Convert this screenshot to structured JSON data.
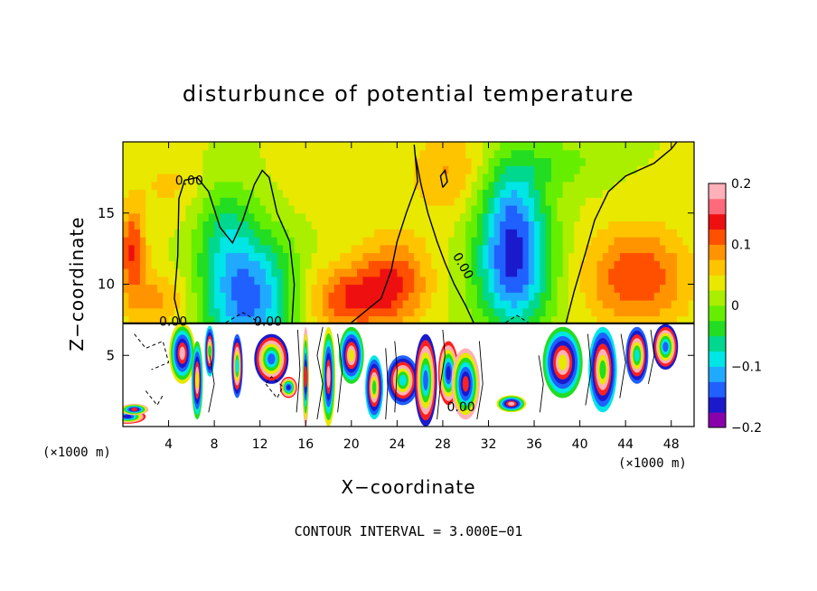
{
  "chart_data": {
    "type": "heatmap",
    "title": "disturbunce of potential temperature",
    "xlabel": "X−coordinate",
    "ylabel": "Z−coordinate",
    "x_unit": "(×1000 m)",
    "x_unit_right": "(×1000 m)",
    "footer": "CONTOUR INTERVAL = 3.000E−01",
    "xlim": [
      0,
      50
    ],
    "ylim": [
      0,
      20
    ],
    "xticks": [
      4,
      8,
      12,
      16,
      20,
      24,
      28,
      32,
      36,
      40,
      44,
      48
    ],
    "yticks": [
      5,
      10,
      15
    ],
    "colorbar": {
      "range": [
        -0.2,
        0.2
      ],
      "ticks": [
        {
          "value": 0.2,
          "label": "0.2"
        },
        {
          "value": 0.1,
          "label": "0.1"
        },
        {
          "value": 0,
          "label": "0"
        },
        {
          "value": -0.1,
          "label": "−0.1"
        },
        {
          "value": -0.2,
          "label": "−0.2"
        }
      ],
      "colors": [
        "#8800aa",
        "#1a1acc",
        "#2060ff",
        "#20aaff",
        "#00e5e5",
        "#00d890",
        "#22dd22",
        "#66ee00",
        "#aaee00",
        "#e8e800",
        "#ffc400",
        "#ff9400",
        "#ff5000",
        "#ee1010",
        "#ff6a7a",
        "#ffb0b8"
      ]
    },
    "contour_labels": [
      {
        "x": 5.8,
        "y": 17.3,
        "text": "0.00"
      },
      {
        "x": 4.4,
        "y": 7.4,
        "text": "0.00"
      },
      {
        "x": 12.7,
        "y": 7.4,
        "text": "0.00"
      },
      {
        "x": 29.8,
        "y": 11.3,
        "text": "0.00"
      },
      {
        "x": 29.6,
        "y": 1.4,
        "text": "0.00"
      }
    ],
    "blobs": [
      {
        "x": 11,
        "y": 9.0,
        "rx": 4.0,
        "ry": 4.5,
        "v": -0.16
      },
      {
        "x": 9.0,
        "y": 14.0,
        "rx": 2.5,
        "ry": 3.5,
        "v": -0.06
      },
      {
        "x": 34.2,
        "y": 11.5,
        "rx": 3.2,
        "ry": 4.8,
        "v": -0.18
      },
      {
        "x": 34.0,
        "y": 16.0,
        "rx": 2.5,
        "ry": 3.0,
        "v": -0.06
      },
      {
        "x": 37.5,
        "y": 18.5,
        "rx": 4.0,
        "ry": 1.8,
        "v": -0.04
      },
      {
        "x": 20.0,
        "y": 9.0,
        "rx": 4.0,
        "ry": 2.5,
        "v": 0.1
      },
      {
        "x": 24.0,
        "y": 10.5,
        "rx": 3.0,
        "ry": 3.0,
        "v": 0.08
      },
      {
        "x": 45.0,
        "y": 10.5,
        "rx": 4.5,
        "ry": 3.5,
        "v": 0.1
      },
      {
        "x": 0.8,
        "y": 12.5,
        "rx": 1.2,
        "ry": 3.0,
        "v": 0.1
      },
      {
        "x": 28.5,
        "y": 18.0,
        "rx": 3.0,
        "ry": 3.0,
        "v": 0.05
      },
      {
        "x": 3.0,
        "y": 9.0,
        "rx": 3.0,
        "ry": 2.0,
        "v": 0.06
      },
      {
        "x": 4.0,
        "y": 17.0,
        "rx": 3.0,
        "ry": 2.5,
        "v": 0.03
      },
      {
        "x": 20.0,
        "y": 17.0,
        "rx": 6.0,
        "ry": 3.0,
        "v": 0.02
      }
    ],
    "base_value": 0.025
  }
}
